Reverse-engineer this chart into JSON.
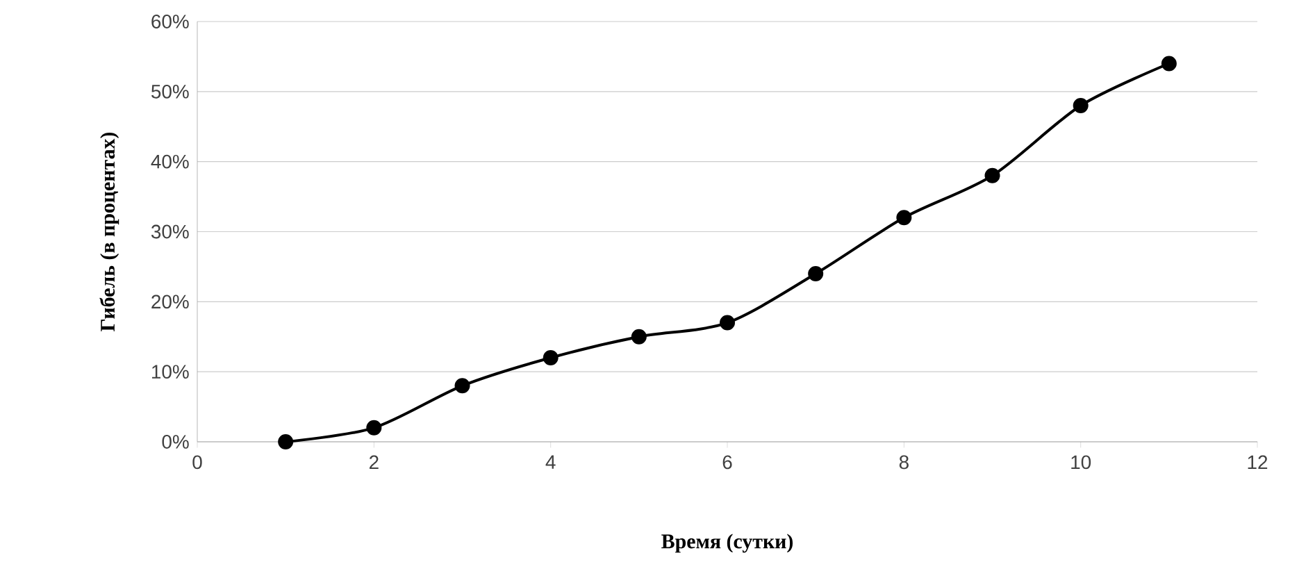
{
  "chart_data": {
    "type": "line",
    "xlabel": "Время (сутки)",
    "ylabel": "Гибель (в процентах)",
    "x": [
      1,
      2,
      3,
      4,
      5,
      6,
      7,
      8,
      9,
      10,
      11
    ],
    "values": [
      0,
      2,
      8,
      12,
      15,
      17,
      24,
      32,
      38,
      48,
      54
    ],
    "color": "#000000",
    "marker": "circle",
    "line_style": "solid",
    "grid": "y",
    "xlim": [
      0,
      12
    ],
    "xticks": [
      0,
      2,
      4,
      6,
      8,
      10,
      12
    ],
    "ylim": [
      0,
      60
    ],
    "yticks": [
      {
        "value": 0,
        "label": "0%"
      },
      {
        "value": 10,
        "label": "10%"
      },
      {
        "value": 20,
        "label": "20%"
      },
      {
        "value": 30,
        "label": "30%"
      },
      {
        "value": 40,
        "label": "40%"
      },
      {
        "value": 50,
        "label": "50%"
      },
      {
        "value": 60,
        "label": "60%"
      }
    ]
  }
}
